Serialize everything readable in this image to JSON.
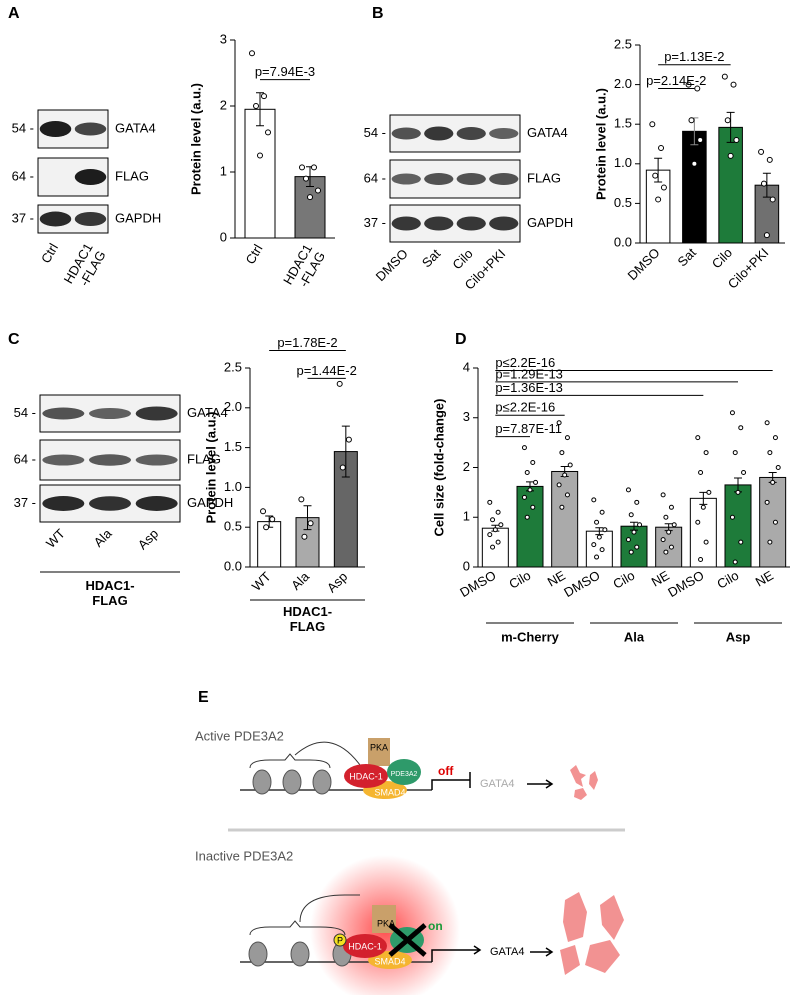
{
  "panel_letters": [
    "A",
    "B",
    "C",
    "D",
    "E"
  ],
  "chart_data": [
    {
      "type": "bar",
      "ylabel": "Protein level (a.u.)",
      "categories": [
        "Ctrl",
        "HDAC1\n-FLAG"
      ],
      "values": [
        1.95,
        0.93
      ],
      "errors": [
        0.25,
        0.15
      ],
      "points": [
        [
          2.8,
          2.15,
          2.0,
          1.6,
          1.25
        ],
        [
          1.07,
          1.07,
          0.9,
          0.72,
          0.62
        ]
      ],
      "colors": [
        "#ffffff",
        "#777777"
      ],
      "ylim": [
        0,
        3
      ],
      "yticks": [
        0,
        1,
        2,
        3
      ],
      "annotations": [
        "p=7.94E-3"
      ]
    },
    {
      "type": "bar",
      "ylabel": "Protein level (a.u.)",
      "categories": [
        "DMSO",
        "Sat",
        "Cilo",
        "Cilo+PKI"
      ],
      "values": [
        0.92,
        1.41,
        1.46,
        0.73
      ],
      "errors": [
        0.15,
        0.17,
        0.19,
        0.15
      ],
      "points": [
        [
          1.5,
          1.2,
          0.85,
          0.7,
          0.55
        ],
        [
          2.0,
          1.95,
          1.55,
          1.3,
          1.0
        ],
        [
          2.1,
          2.0,
          1.55,
          1.3,
          1.1
        ],
        [
          1.15,
          1.05,
          0.75,
          0.55,
          0.1
        ]
      ],
      "colors": [
        "#ffffff",
        "#000000",
        "#1e7b3a",
        "#707070"
      ],
      "ylim": [
        0,
        2.5
      ],
      "yticks": [
        {
          "value": 0,
          "label": "0.0"
        },
        0.5,
        {
          "value": 1,
          "label": "1.0"
        },
        1.5,
        {
          "value": 2,
          "label": "2.0"
        },
        2.5
      ],
      "annotations": [
        "p=2.14E-2",
        "p=1.13E-2"
      ]
    },
    {
      "type": "bar",
      "ylabel": "Protein level (a.u.)",
      "categories": [
        "WT",
        "Ala",
        "Asp"
      ],
      "values": [
        0.57,
        0.62,
        1.45
      ],
      "errors": [
        0.07,
        0.15,
        0.32
      ],
      "points": [
        [
          0.7,
          0.6,
          0.5
        ],
        [
          0.85,
          0.55,
          0.38
        ],
        [
          2.3,
          1.6,
          1.25
        ]
      ],
      "colors": [
        "#ffffff",
        "#aaaaaa",
        "#666666"
      ],
      "ylim": [
        0,
        2.5
      ],
      "yticks": [
        {
          "value": 0,
          "label": "0.0"
        },
        0.5,
        {
          "value": 1,
          "label": "1.0"
        },
        1.5,
        {
          "value": 2,
          "label": "2.0"
        },
        2.5
      ],
      "annotations": [
        "p=1.78E-2",
        "p=1.44E-2"
      ],
      "group": "HDAC1-\nFLAG"
    },
    {
      "type": "bar",
      "ylabel": "Cell size (fold-change)",
      "categories": [
        "DMSO",
        "Cilo",
        "NE",
        "DMSO",
        "Cilo",
        "NE",
        "DMSO",
        "Cilo",
        "NE"
      ],
      "groups": [
        "m-Cherry",
        "Ala",
        "Asp"
      ],
      "values": [
        0.78,
        1.62,
        1.92,
        0.72,
        0.82,
        0.8,
        1.38,
        1.65,
        1.8
      ],
      "errors": [
        0.06,
        0.09,
        0.1,
        0.07,
        0.08,
        0.07,
        0.12,
        0.14,
        0.1
      ],
      "points": [
        [
          1.3,
          1.1,
          0.95,
          0.85,
          0.75,
          0.65,
          0.5,
          0.4
        ],
        [
          2.4,
          2.1,
          1.9,
          1.7,
          1.55,
          1.4,
          1.2,
          1.0
        ],
        [
          2.9,
          2.6,
          2.3,
          2.05,
          1.85,
          1.65,
          1.45,
          1.2
        ],
        [
          1.35,
          1.1,
          0.9,
          0.75,
          0.6,
          0.45,
          0.35,
          0.2
        ],
        [
          1.55,
          1.3,
          1.05,
          0.85,
          0.7,
          0.55,
          0.4,
          0.3
        ],
        [
          1.45,
          1.2,
          1.0,
          0.85,
          0.7,
          0.55,
          0.4,
          0.3
        ],
        [
          2.6,
          2.3,
          1.9,
          1.5,
          1.2,
          0.9,
          0.5,
          0.15
        ],
        [
          3.1,
          2.8,
          2.3,
          1.9,
          1.5,
          1.0,
          0.5,
          0.1
        ],
        [
          2.9,
          2.6,
          2.3,
          2.0,
          1.7,
          1.3,
          0.9,
          0.5
        ]
      ],
      "colors": [
        "#ffffff",
        "#1e7b3a",
        "#aaaaaa",
        "#ffffff",
        "#1e7b3a",
        "#aaaaaa",
        "#ffffff",
        "#1e7b3a",
        "#aaaaaa"
      ],
      "ylim": [
        0,
        4
      ],
      "yticks": [
        0,
        1,
        2,
        3,
        4
      ],
      "annotations": [
        "p=7.87E-11",
        "p≤2.2E-16",
        "p=1.36E-13",
        "p=1.29E-13",
        "p≤2.2E-16"
      ]
    }
  ],
  "blots": [
    {
      "markers": [
        "54 -",
        "64 -",
        "37 -"
      ],
      "proteins": [
        "GATA4",
        "FLAG",
        "GAPDH"
      ],
      "lanes": [
        "Ctrl",
        "HDAC1\n-FLAG"
      ]
    },
    {
      "markers": [
        "54 -",
        "64 -",
        "37 -"
      ],
      "proteins": [
        "GATA4",
        "FLAG",
        "GAPDH"
      ],
      "lanes": [
        "DMSO",
        "Sat",
        "Cilo",
        "Cilo+PKI"
      ]
    },
    {
      "markers": [
        "54 -",
        "64 -",
        "37 -"
      ],
      "proteins": [
        "GATA4",
        "FLAG",
        "GAPDH"
      ],
      "lanes": [
        "WT",
        "Ala",
        "Asp"
      ],
      "group": "HDAC1-\nFLAG"
    }
  ],
  "diagram": {
    "active": {
      "title": "Active PDE3A2",
      "pka": "PKA",
      "hdac": "HDAC-1",
      "pde": "PDE3A2",
      "smad": "SMAD4",
      "state": "off",
      "gene": "GATA4"
    },
    "inactive": {
      "title": "Inactive PDE3A2",
      "phospho": "P",
      "pka": "PKA",
      "hdac": "HDAC-1",
      "smad": "SMAD4",
      "state": "on",
      "gene": "GATA4"
    }
  }
}
